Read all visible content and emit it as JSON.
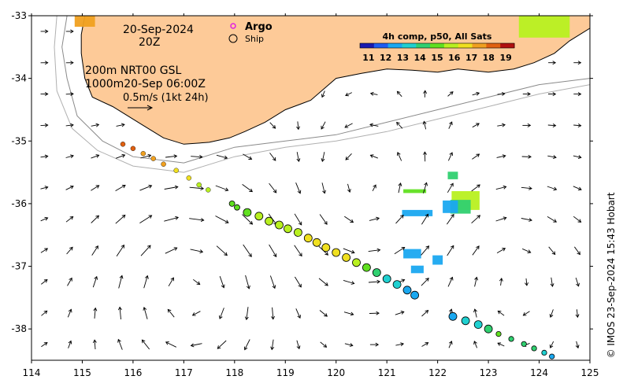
{
  "map": {
    "extent": {
      "lon": [
        114,
        125
      ],
      "lat": [
        -38.5,
        -33
      ]
    },
    "land_color": "#fdca98",
    "x_ticks": [
      "114",
      "115",
      "116",
      "117",
      "118",
      "119",
      "120",
      "121",
      "122",
      "123",
      "124",
      "125"
    ],
    "y_ticks": [
      "-33",
      "-34",
      "-35",
      "-36",
      "-37",
      "-38"
    ],
    "x_tick_values": [
      114,
      115,
      116,
      117,
      118,
      119,
      120,
      121,
      122,
      123,
      124,
      125
    ],
    "y_tick_values": [
      -33,
      -34,
      -35,
      -36,
      -37,
      -38
    ]
  },
  "labels": {
    "date": "20-Sep-2024",
    "time": "20Z",
    "line_200m": "200m  NRT00 GSL",
    "line_1000m": "1000m20-Sep 06:00Z",
    "scale": "0.5m/s (1kt 24h)",
    "argo": "Argo",
    "ship": "Ship",
    "credit": "© IMOS 23-Sep-2024 15:43 Hobart"
  },
  "colorbar": {
    "title": "4h comp, p50, All Sats",
    "ticks": [
      "11",
      "12",
      "13",
      "14",
      "15",
      "16",
      "17",
      "18",
      "19"
    ],
    "min": 10.5,
    "max": 19.5,
    "colors": [
      "#1a1ab0",
      "#1f5cf0",
      "#1aa8f0",
      "#20d0d0",
      "#30d070",
      "#60e020",
      "#b8f020",
      "#f0e020",
      "#f0a020",
      "#e06010",
      "#b01010"
    ]
  },
  "track": {
    "small": [
      [
        115.8,
        -35.05,
        18.5
      ],
      [
        116.0,
        -35.12,
        18.1
      ],
      [
        116.2,
        -35.2,
        17.7
      ],
      [
        116.4,
        -35.28,
        17.4
      ],
      [
        116.6,
        -35.37,
        17.1
      ],
      [
        116.85,
        -35.47,
        16.9
      ],
      [
        117.1,
        -35.59,
        16.6
      ],
      [
        117.3,
        -35.7,
        16.2
      ],
      [
        117.48,
        -35.78,
        15.9
      ]
    ],
    "large": [
      [
        118.25,
        -36.14,
        15.3
      ],
      [
        118.48,
        -36.2,
        15.5
      ],
      [
        118.68,
        -36.28,
        15.7
      ],
      [
        118.88,
        -36.34,
        15.8
      ],
      [
        119.05,
        -36.4,
        15.8
      ],
      [
        119.25,
        -36.46,
        16.1
      ],
      [
        119.45,
        -36.55,
        16.3
      ],
      [
        119.62,
        -36.62,
        16.5
      ],
      [
        119.8,
        -36.7,
        16.6
      ],
      [
        120.0,
        -36.78,
        16.8
      ],
      [
        120.2,
        -36.86,
        16.4
      ],
      [
        120.4,
        -36.94,
        15.6
      ],
      [
        120.6,
        -37.02,
        14.8
      ],
      [
        120.8,
        -37.1,
        14.2
      ],
      [
        121.0,
        -37.2,
        13.5
      ],
      [
        121.2,
        -37.29,
        13.2
      ],
      [
        121.4,
        -37.38,
        12.8
      ],
      [
        121.55,
        -37.46,
        12.4
      ]
    ],
    "med": [
      [
        117.95,
        -36.0,
        15.0
      ],
      [
        118.05,
        -36.06,
        15.1
      ]
    ],
    "east_large": [
      [
        122.3,
        -37.8,
        12.6
      ],
      [
        122.55,
        -37.87,
        13.0
      ],
      [
        122.8,
        -37.93,
        13.6
      ],
      [
        123.0,
        -38.0,
        14.4
      ]
    ],
    "east_small": [
      [
        123.2,
        -38.08,
        14.6
      ],
      [
        123.45,
        -38.16,
        14.5
      ],
      [
        123.7,
        -38.24,
        14.2
      ],
      [
        123.9,
        -38.31,
        13.8
      ],
      [
        124.1,
        -38.38,
        13.4
      ],
      [
        124.25,
        -38.44,
        12.6
      ]
    ]
  },
  "sst_patches": [
    {
      "lon": 122.55,
      "lat": -35.95,
      "w": 0.55,
      "h": 0.3,
      "temp": 15.6
    },
    {
      "lon": 122.45,
      "lat": -36.05,
      "w": 0.4,
      "h": 0.22,
      "temp": 13.8
    },
    {
      "lon": 122.25,
      "lat": -36.05,
      "w": 0.3,
      "h": 0.2,
      "temp": 12.9
    },
    {
      "lon": 121.6,
      "lat": -36.15,
      "w": 0.6,
      "h": 0.1,
      "temp": 12.6
    },
    {
      "lon": 121.55,
      "lat": -35.8,
      "w": 0.45,
      "h": 0.06,
      "temp": 15.0
    },
    {
      "lon": 122.3,
      "lat": -35.55,
      "w": 0.2,
      "h": 0.12,
      "temp": 14.0
    },
    {
      "lon": 121.5,
      "lat": -36.8,
      "w": 0.35,
      "h": 0.15,
      "temp": 12.8
    },
    {
      "lon": 122.0,
      "lat": -36.9,
      "w": 0.2,
      "h": 0.15,
      "temp": 12.9
    },
    {
      "lon": 121.6,
      "lat": -37.05,
      "w": 0.25,
      "h": 0.12,
      "temp": 12.7
    }
  ],
  "sst_land_patches": [
    {
      "lon": 115.05,
      "lat": -33.0,
      "w": 0.4,
      "h": 0.35,
      "temp": 17.8
    },
    {
      "lon": 124.1,
      "lat": -33.0,
      "w": 1.0,
      "h": 0.7,
      "temp": 16.0
    }
  ],
  "current_field": {
    "eddies": [
      {
        "lon": 117.1,
        "lat": -37.3,
        "strength": -1.0,
        "radius": 1.6
      },
      {
        "lon": 120.6,
        "lat": -35.9,
        "strength": 0.7,
        "radius": 1.4
      },
      {
        "lon": 123.5,
        "lat": -37.0,
        "strength": -0.6,
        "radius": 1.3
      }
    ],
    "spacing_deg": 0.5
  },
  "contours_200m": [
    [
      [
        114.7,
        -33.0
      ],
      [
        114.6,
        -33.5
      ],
      [
        114.7,
        -34.0
      ],
      [
        114.9,
        -34.6
      ],
      [
        115.4,
        -35.0
      ],
      [
        116.0,
        -35.25
      ],
      [
        117.0,
        -35.35
      ],
      [
        118.0,
        -35.1
      ],
      [
        119.0,
        -35.0
      ],
      [
        120.0,
        -34.9
      ],
      [
        121.0,
        -34.7
      ],
      [
        122.0,
        -34.5
      ],
      [
        123.0,
        -34.3
      ],
      [
        124.0,
        -34.1
      ],
      [
        125.0,
        -34.0
      ]
    ]
  ],
  "contours_1000m": [
    [
      [
        114.5,
        -33.0
      ],
      [
        114.45,
        -33.5
      ],
      [
        114.5,
        -34.2
      ],
      [
        114.8,
        -34.8
      ],
      [
        115.3,
        -35.15
      ],
      [
        116.0,
        -35.4
      ],
      [
        117.0,
        -35.5
      ],
      [
        118.0,
        -35.25
      ],
      [
        119.0,
        -35.1
      ],
      [
        120.0,
        -35.0
      ],
      [
        121.0,
        -34.85
      ],
      [
        122.0,
        -34.65
      ],
      [
        123.0,
        -34.45
      ],
      [
        124.0,
        -34.25
      ],
      [
        125.0,
        -34.1
      ]
    ]
  ],
  "coastline": [
    [
      [
        115.05,
        -33.0
      ],
      [
        114.98,
        -33.3
      ],
      [
        114.98,
        -33.6
      ],
      [
        115.05,
        -34.0
      ],
      [
        115.2,
        -34.3
      ],
      [
        115.6,
        -34.45
      ],
      [
        116.2,
        -34.75
      ],
      [
        116.6,
        -34.95
      ],
      [
        117.0,
        -35.05
      ],
      [
        117.5,
        -35.02
      ],
      [
        117.9,
        -34.95
      ],
      [
        118.2,
        -34.85
      ],
      [
        118.6,
        -34.7
      ],
      [
        119.0,
        -34.5
      ],
      [
        119.5,
        -34.35
      ],
      [
        120.0,
        -34.0
      ],
      [
        120.5,
        -33.92
      ],
      [
        121.0,
        -33.85
      ],
      [
        121.5,
        -33.87
      ],
      [
        122.0,
        -33.9
      ],
      [
        122.4,
        -33.85
      ],
      [
        123.0,
        -33.9
      ],
      [
        123.5,
        -33.85
      ],
      [
        123.9,
        -33.75
      ],
      [
        124.3,
        -33.6
      ],
      [
        124.6,
        -33.4
      ],
      [
        125.0,
        -33.2
      ]
    ]
  ]
}
